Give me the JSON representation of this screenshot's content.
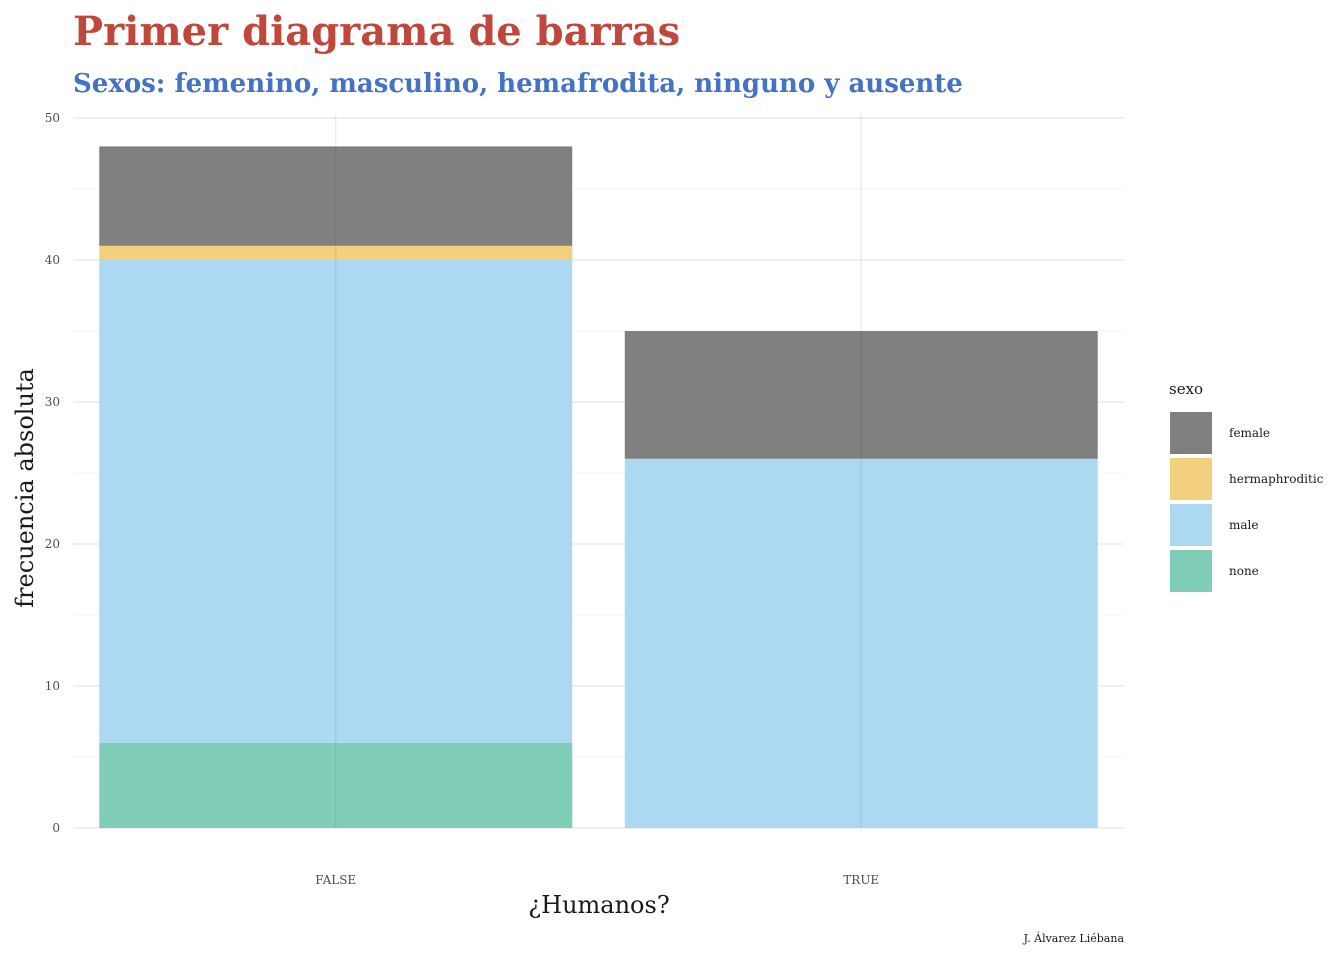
{
  "chart_data": {
    "type": "bar",
    "stacked": true,
    "title": "Primer diagrama de barras",
    "subtitle": "Sexos: femenino, masculino, hemafrodita, ninguno y ausente",
    "xlabel": "¿Humanos?",
    "ylabel": "frecuencia absoluta",
    "caption": "J. Álvarez Liébana",
    "categories": [
      "FALSE",
      "TRUE"
    ],
    "ylim": [
      0,
      50
    ],
    "yticks": [
      0,
      10,
      20,
      30,
      40,
      50
    ],
    "grid": true,
    "legend": {
      "title": "sexo",
      "position": "right"
    },
    "stack_order_bottom_to_top": [
      "none",
      "male",
      "hermaphroditic",
      "female"
    ],
    "series": [
      {
        "name": "female",
        "color": "#808080",
        "values": [
          7,
          9
        ]
      },
      {
        "name": "hermaphroditic",
        "color": "#f2d07e",
        "values": [
          1,
          0
        ]
      },
      {
        "name": "male",
        "color": "#acd8f2",
        "values": [
          34,
          26
        ]
      },
      {
        "name": "none",
        "color": "#80cdb7",
        "values": [
          6,
          0
        ]
      }
    ]
  }
}
